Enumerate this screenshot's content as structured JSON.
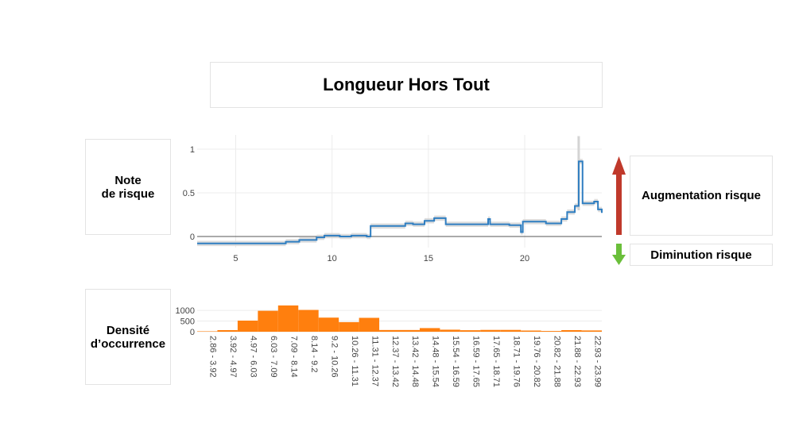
{
  "title": "Longueur Hors Tout",
  "labels": {
    "note": "Note\nde risque",
    "density": "Densité\nd’occurrence",
    "increase": "Augmentation risque",
    "decrease": "Diminution risque"
  },
  "colors": {
    "line": "#2f7ec1",
    "band": "#d4d4d4",
    "bars": "#ff7f0e",
    "up_arrow": "#c0392b",
    "down_arrow": "#6abf3a"
  },
  "chart_data": [
    {
      "type": "line",
      "xlim": [
        3,
        24
      ],
      "ylim": [
        -0.1,
        1.1
      ],
      "x_ticks": [
        5,
        10,
        15,
        20
      ],
      "y_ticks": [
        0,
        0.5,
        1
      ],
      "grid": true,
      "step": true,
      "x": [
        3.0,
        7.0,
        7.6,
        8.3,
        9.2,
        9.6,
        10.4,
        11.0,
        11.8,
        12.0,
        13.8,
        14.2,
        14.8,
        15.3,
        15.9,
        18.1,
        18.2,
        19.2,
        19.8,
        19.9,
        20.6,
        21.1,
        21.9,
        22.2,
        22.6,
        22.8,
        23.0,
        23.6,
        23.8,
        24.0
      ],
      "y": [
        -0.08,
        -0.08,
        -0.06,
        -0.04,
        -0.01,
        0.01,
        0.0,
        0.01,
        0.0,
        0.12,
        0.15,
        0.14,
        0.18,
        0.21,
        0.14,
        0.2,
        0.14,
        0.13,
        0.05,
        0.17,
        0.17,
        0.15,
        0.2,
        0.28,
        0.35,
        0.86,
        0.38,
        0.4,
        0.31,
        0.27
      ]
    },
    {
      "type": "bar",
      "ylim": [
        0,
        1300
      ],
      "y_ticks": [
        0,
        500,
        1000
      ],
      "categories": [
        "2.86 - 3.92",
        "3.92 - 4.97",
        "4.97 - 6.03",
        "6.03 - 7.09",
        "7.09 - 8.14",
        "8.14 - 9.2",
        "9.2 - 10.26",
        "10.26 - 11.31",
        "11.31 - 12.37",
        "12.37 - 13.42",
        "13.42 - 14.48",
        "14.48 - 15.54",
        "15.54 - 16.59",
        "16.59 - 17.65",
        "17.65 - 18.71",
        "18.71 - 19.76",
        "19.76 - 20.82",
        "20.82 - 21.88",
        "21.88 - 22.93",
        "22.93 - 23.99"
      ],
      "values": [
        20,
        75,
        520,
        980,
        1230,
        1020,
        660,
        450,
        650,
        80,
        80,
        170,
        95,
        70,
        85,
        85,
        55,
        35,
        75,
        60
      ]
    }
  ]
}
